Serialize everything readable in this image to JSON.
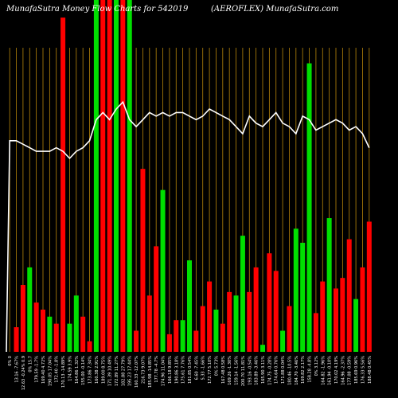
{
  "header": {
    "title_left": "MunafaSutra  Money Flow  Charts for 542019",
    "title_right": "(AEROFLEX) MunafaSutra.com"
  },
  "chart_data": {
    "type": "bar",
    "title": "Money Flow Chart",
    "ylim": [
      0,
      100
    ],
    "bar_colors": {
      "up": "#00e000",
      "down": "#ff0000"
    },
    "grid_color": "#b8860b",
    "line_color": "#ffffff",
    "background": "#000000",
    "categories": [
      "0% 0",
      "13.16 -7.67%",
      "12.63 -0.24% 0.9",
      "0% 15.7",
      "179.59 -1.7%",
      "169.40 4.72%",
      "190.05 17.04%",
      "172.40 -1.8%",
      "170.13 -14.89%",
      "174.59 3.9%",
      "164.86 1.32%",
      "155.00 -0.14%",
      "173.86 7.34%",
      "160.38 2.91%",
      "189.00 8.75%",
      "171.39 10.49%",
      "172.89 11.27%",
      "182.88 27.79%",
      "195.23 17.44%",
      "160.33 -12.07%",
      "216.73 9.07%",
      "185.98 -14.85%",
      "177.78 -4.7%",
      "174.96 11.04%",
      "166.18 9.85%",
      "190.86 3.18%",
      "175.61 7.76%",
      "181.85 0.54%",
      "6.60 -7.45%",
      "5.33 -1.66%",
      "172.77 5.10%",
      "0% 5.73%",
      "167.48 0.58%",
      "169.26 -1.30%",
      "159.14 -1.56%",
      "200.70 11.81%",
      "193.16 -0.54%",
      "183.89 -3.46%",
      "165.90 3.11%",
      "174.75 -0.28%",
      "174.64 0.76%",
      "171.88 0.04%",
      "180.46 -10.5%",
      "184.70 -3.46%",
      "169.82 2.17%",
      "158.28 -4.8%",
      "0% 3.12%",
      "164.82 -1.96%",
      "161.94 -0.10%",
      "170.02 4.19%",
      "164.96 -2.37%",
      "177.08 -0.59%",
      "185.69 0.96%",
      "176.33 5.56%",
      "188.48 0.45%"
    ],
    "values": [
      0,
      7,
      19,
      24,
      14,
      12,
      10,
      8,
      95,
      8,
      16,
      10,
      3,
      100,
      100,
      100,
      100,
      100,
      100,
      6,
      52,
      16,
      30,
      46,
      5,
      9,
      9,
      26,
      6,
      13,
      20,
      12,
      8,
      17,
      16,
      33,
      17,
      24,
      2,
      28,
      23,
      6,
      13,
      35,
      31,
      82,
      11,
      20,
      38,
      18,
      21,
      32,
      15,
      24,
      37
    ],
    "directions": [
      "up",
      "down",
      "down",
      "up",
      "down",
      "down",
      "up",
      "down",
      "down",
      "up",
      "up",
      "down",
      "down",
      "up",
      "down",
      "down",
      "up",
      "down",
      "up",
      "down",
      "down",
      "down",
      "down",
      "up",
      "down",
      "down",
      "up",
      "up",
      "down",
      "down",
      "down",
      "up",
      "down",
      "down",
      "up",
      "up",
      "down",
      "down",
      "up",
      "down",
      "down",
      "up",
      "down",
      "up",
      "up",
      "up",
      "down",
      "down",
      "up",
      "down",
      "down",
      "down",
      "up",
      "down",
      "down"
    ],
    "line_values": [
      60,
      60,
      59,
      58,
      57,
      57,
      57,
      58,
      57,
      55,
      57,
      58,
      60,
      66,
      68,
      66,
      69,
      71,
      66,
      64,
      66,
      68,
      67,
      68,
      67,
      68,
      68,
      67,
      66,
      67,
      69,
      68,
      67,
      66,
      64,
      62,
      67,
      65,
      64,
      66,
      68,
      65,
      64,
      62,
      67,
      66,
      63,
      64,
      65,
      66,
      65,
      63,
      64,
      62,
      58
    ],
    "shown_bar_count": 55
  }
}
